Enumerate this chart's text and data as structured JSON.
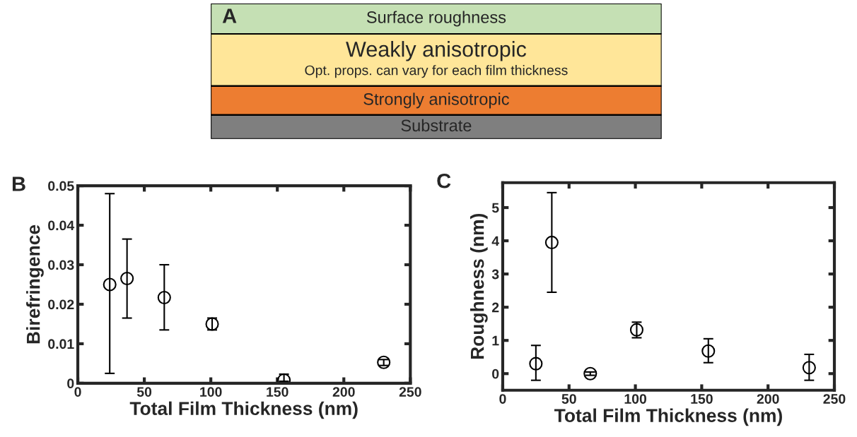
{
  "chart_data": [
    {
      "type": "other",
      "categories": [
        "Surface roughness",
        "Weakly anisotropic",
        "Strongly anisotropic",
        "Substrate"
      ],
      "colors": [
        "#c5e0b4",
        "#ffe699",
        "#ed7d31",
        "#7f7f7f"
      ],
      "annotations": [
        "A",
        "Opt. props. can vary for each film thickness"
      ]
    },
    {
      "type": "scatter",
      "annotations": [
        "B"
      ],
      "xlabel": "Total Film Thickness (nm)",
      "ylabel": "Birefringence",
      "xlim": [
        0,
        250
      ],
      "ylim": [
        0,
        0.05
      ],
      "xticks": [
        0,
        50,
        100,
        150,
        200,
        250
      ],
      "yticks": [
        0,
        0.01,
        0.02,
        0.03,
        0.04,
        0.05
      ],
      "marker": "circle",
      "grid": false,
      "series": [
        {
          "color": "#000000",
          "x": [
            24,
            37,
            65,
            101,
            155,
            230
          ],
          "values": [
            0.025,
            0.0265,
            0.0217,
            0.015,
            0.0008,
            0.0053
          ],
          "errors": [
            [
              0.0025,
              0.048
            ],
            [
              0.0165,
              0.0365
            ],
            [
              0.0135,
              0.03
            ],
            [
              0.0135,
              0.0165
            ],
            [
              0.0005,
              0.0023
            ],
            [
              0.0045,
              0.006
            ]
          ]
        }
      ]
    },
    {
      "type": "scatter",
      "annotations": [
        "C"
      ],
      "xlabel": "Total Film Thickness (nm)",
      "ylabel": "Roughness (nm)",
      "xlim": [
        0,
        250
      ],
      "ylim": [
        -0.5,
        5.75
      ],
      "xticks": [
        0,
        50,
        100,
        150,
        200,
        250
      ],
      "yticks": [
        0,
        1,
        2,
        3,
        4,
        5
      ],
      "marker": "circle",
      "grid": false,
      "series": [
        {
          "color": "#000000",
          "x": [
            25,
            37,
            66,
            101,
            155,
            231
          ],
          "values": [
            0.3,
            3.95,
            0.0,
            1.32,
            0.68,
            0.18
          ],
          "errors": [
            [
              -0.2,
              0.85
            ],
            [
              2.45,
              5.45
            ],
            [
              -0.05,
              0.05
            ],
            [
              1.08,
              1.55
            ],
            [
              0.33,
              1.05
            ],
            [
              -0.2,
              0.58
            ]
          ]
        }
      ]
    }
  ]
}
